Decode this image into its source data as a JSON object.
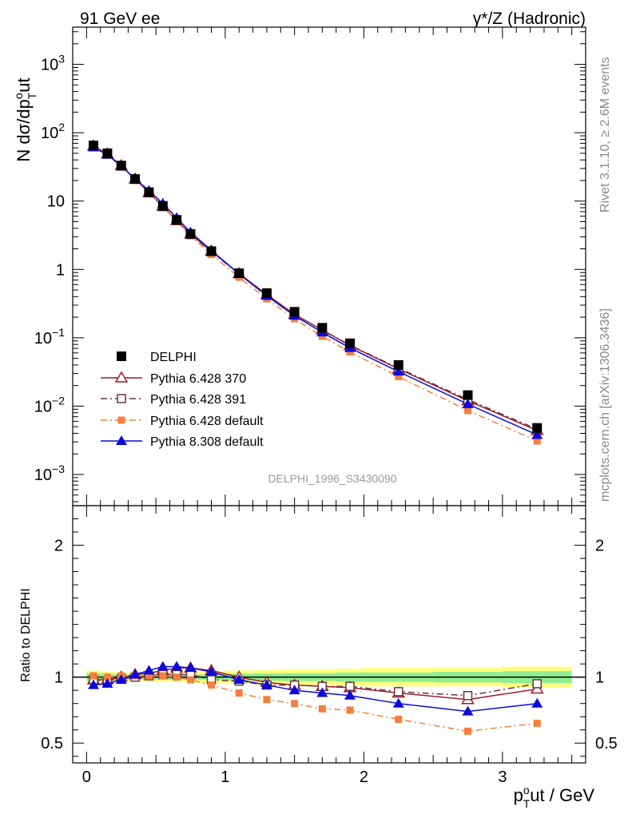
{
  "header": {
    "left": "91 GeV ee",
    "right": "γ*/Z (Hadronic)"
  },
  "side_labels": {
    "rivet": "Rivet 3.1.10, ≥ 2.6M events",
    "mcplots": "mcplots.cern.ch [arXiv:1306.3436]"
  },
  "analysis_label": "DELPHI_1996_S3430090",
  "axes": {
    "ylabel_main": "N dσ/dp",
    "ylabel_main_sub": "T",
    "ylabel_main_sup": "o",
    "ylabel_main_tail": "ut",
    "ylabel_ratio": "Ratio to DELPHI",
    "xlabel_p": "p",
    "xlabel_sub": "T",
    "xlabel_sup": "o",
    "xlabel_tail": "ut / GeV"
  },
  "legend": [
    {
      "label": "DELPHI"
    },
    {
      "label": "Pythia 6.428 370"
    },
    {
      "label": "Pythia 6.428 391"
    },
    {
      "label": "Pythia 6.428 default"
    },
    {
      "label": "Pythia 8.308 default"
    }
  ],
  "chart_data": [
    {
      "type": "line",
      "panel": "main",
      "y_scale": "log",
      "xlim": [
        -0.1,
        3.6
      ],
      "ylim": [
        0.00035,
        3500
      ],
      "y_ticks": [
        "10^3",
        "10^2",
        "10",
        "1",
        "10^-1",
        "10^-2",
        "10^-3"
      ],
      "x": [
        0.05,
        0.15,
        0.25,
        0.35,
        0.45,
        0.55,
        0.65,
        0.75,
        0.9,
        1.1,
        1.3,
        1.5,
        1.7,
        1.9,
        2.25,
        2.75,
        3.25
      ],
      "series": [
        {
          "name": "DELPHI",
          "color": "#000000",
          "marker": "filled-square",
          "values": [
            65,
            50,
            33,
            21,
            13.5,
            8.5,
            5.3,
            3.3,
            1.85,
            0.88,
            0.45,
            0.24,
            0.14,
            0.083,
            0.04,
            0.0145,
            0.0048
          ]
        },
        {
          "name": "Pythia 6.428 370",
          "color": "#9e1b2c",
          "marker": "open-triangle",
          "style": "solid",
          "values": [
            64,
            49,
            33,
            21,
            13.3,
            8.4,
            5.2,
            3.3,
            1.85,
            0.87,
            0.43,
            0.22,
            0.13,
            0.077,
            0.035,
            0.012,
            0.0044
          ]
        },
        {
          "name": "Pythia 6.428 391",
          "color": "#6b3340",
          "marker": "open-square",
          "style": "dashdot",
          "values": [
            64,
            49,
            32.5,
            20.8,
            13.2,
            8.3,
            5.2,
            3.25,
            1.8,
            0.86,
            0.42,
            0.22,
            0.13,
            0.078,
            0.036,
            0.0125,
            0.0046
          ]
        },
        {
          "name": "Pythia 6.428 default",
          "color": "#f5803e",
          "marker": "filled-square-small",
          "style": "dashdot",
          "values": [
            65,
            49,
            33,
            21,
            13.3,
            8.3,
            5.1,
            3.1,
            1.65,
            0.77,
            0.37,
            0.19,
            0.105,
            0.062,
            0.027,
            0.0086,
            0.0031
          ]
        },
        {
          "name": "Pythia 8.308 default",
          "color": "#0a0adb",
          "marker": "filled-triangle",
          "style": "solid",
          "values": [
            61,
            47.5,
            32.5,
            21.2,
            14.2,
            9.2,
            5.7,
            3.5,
            1.9,
            0.86,
            0.41,
            0.21,
            0.12,
            0.071,
            0.032,
            0.0107,
            0.0038
          ]
        }
      ]
    },
    {
      "type": "line",
      "panel": "ratio",
      "xlim": [
        -0.1,
        3.6
      ],
      "ylim": [
        0.35,
        2.3
      ],
      "y_ticks": [
        "0.5",
        "1",
        "2"
      ],
      "x_ticks": [
        "0",
        "1",
        "2",
        "3"
      ],
      "band_edges": [
        0,
        0.1,
        0.2,
        0.3,
        0.4,
        0.5,
        0.6,
        0.7,
        0.8,
        1.0,
        1.2,
        1.4,
        1.6,
        1.8,
        2.0,
        2.5,
        3.0,
        3.5
      ],
      "band_inner": [
        0.03,
        0.025,
        0.02,
        0.02,
        0.02,
        0.02,
        0.02,
        0.02,
        0.02,
        0.025,
        0.028,
        0.03,
        0.03,
        0.035,
        0.035,
        0.04,
        0.045
      ],
      "band_outer": [
        0.05,
        0.04,
        0.035,
        0.035,
        0.035,
        0.035,
        0.035,
        0.04,
        0.045,
        0.05,
        0.055,
        0.06,
        0.06,
        0.065,
        0.07,
        0.07,
        0.08
      ],
      "band_inner_color": "#90ee90",
      "band_outer_color": "#ffff80",
      "x": [
        0.05,
        0.15,
        0.25,
        0.35,
        0.45,
        0.55,
        0.65,
        0.75,
        0.9,
        1.1,
        1.3,
        1.5,
        1.7,
        1.9,
        2.25,
        2.75,
        3.25
      ],
      "series": [
        {
          "name": "Pythia 6.428 370",
          "color": "#9e1b2c",
          "marker": "open-triangle",
          "style": "solid",
          "values": [
            0.98,
            0.98,
            1.0,
            1.02,
            1.03,
            1.05,
            1.07,
            1.07,
            1.05,
            1.0,
            0.96,
            0.94,
            0.93,
            0.92,
            0.88,
            0.83,
            0.91
          ]
        },
        {
          "name": "Pythia 6.428 391",
          "color": "#6b3340",
          "marker": "open-square",
          "style": "dashdot",
          "values": [
            0.98,
            0.97,
            0.99,
            1.0,
            1.01,
            1.02,
            1.02,
            1.02,
            0.98,
            0.97,
            0.94,
            0.94,
            0.93,
            0.93,
            0.89,
            0.86,
            0.95
          ]
        },
        {
          "name": "Pythia 6.428 default",
          "color": "#f5803e",
          "marker": "filled-square-small",
          "style": "dashdot",
          "values": [
            1.01,
            1.0,
            1.01,
            1.01,
            1.01,
            1.01,
            1.0,
            0.98,
            0.94,
            0.88,
            0.83,
            0.8,
            0.76,
            0.75,
            0.68,
            0.59,
            0.65
          ]
        },
        {
          "name": "Pythia 8.308 default",
          "color": "#0a0adb",
          "marker": "filled-triangle",
          "style": "solid",
          "values": [
            0.94,
            0.95,
            0.98,
            1.02,
            1.05,
            1.08,
            1.08,
            1.07,
            1.04,
            0.98,
            0.94,
            0.9,
            0.88,
            0.86,
            0.8,
            0.74,
            0.8
          ]
        }
      ]
    }
  ]
}
